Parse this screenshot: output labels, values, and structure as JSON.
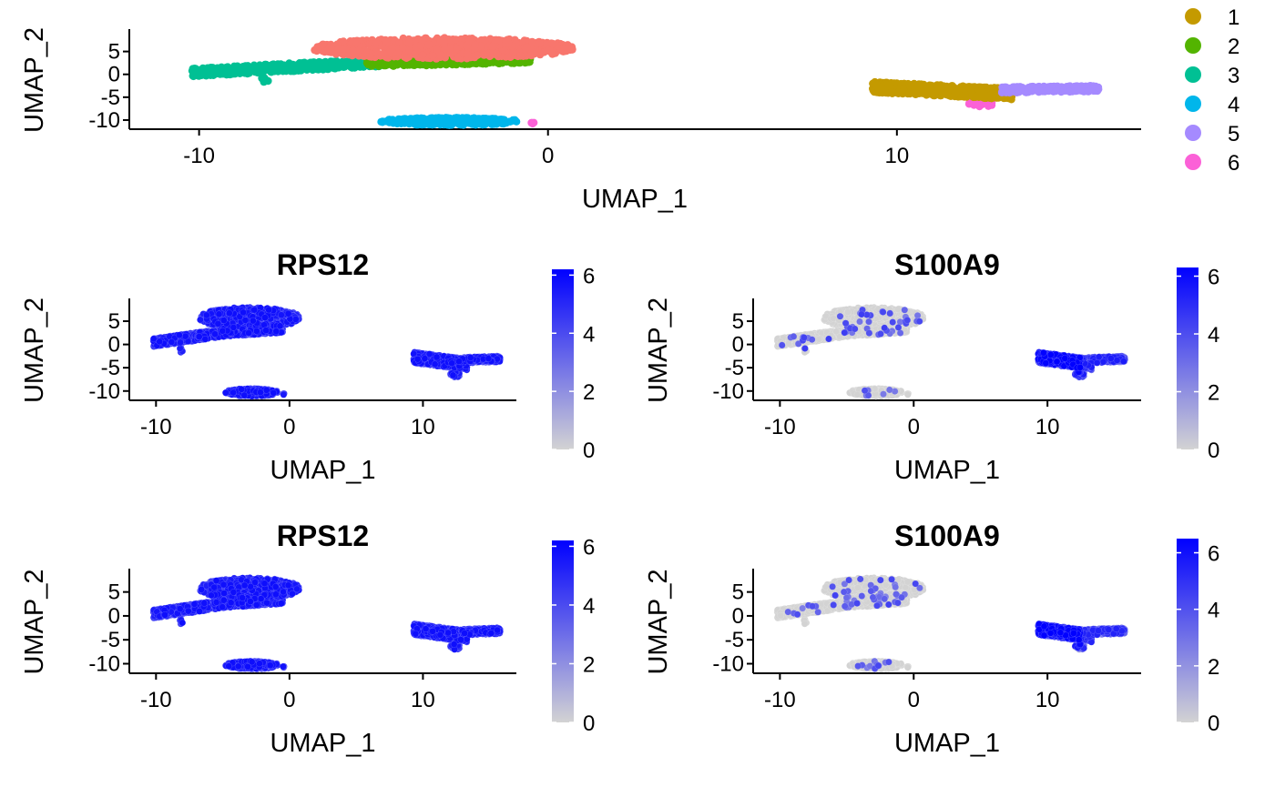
{
  "chart_data": [
    {
      "panel": "clusters",
      "type": "scatter",
      "title": "",
      "xlabel": "UMAP_1",
      "ylabel": "UMAP_2",
      "xlim": [
        -12,
        17
      ],
      "ylim": [
        -12,
        9.5
      ],
      "xticks": [
        -10,
        0,
        10
      ],
      "yticks": [
        5,
        0,
        -5,
        -10
      ],
      "grid": false,
      "legend": {
        "position": "right",
        "title": "",
        "entries": [
          "1",
          "2",
          "3",
          "4",
          "5",
          "6"
        ]
      },
      "colors": {
        "1": "#C49A00",
        "2": "#53B400",
        "3": "#00C094",
        "4": "#00B6EB",
        "5": "#A58AFF",
        "6": "#FB61D7",
        "0": "#F8766D"
      },
      "clusters": [
        {
          "id": "0",
          "shape": "ellipse",
          "cx": -3.0,
          "cy": 5.7,
          "rx": 3.8,
          "ry": 2.3,
          "n": 700
        },
        {
          "id": "2",
          "shape": "band",
          "x0": -5.2,
          "x1": -0.5,
          "y0": 2.8,
          "y1": 3.6,
          "h": 2.3,
          "n": 550
        },
        {
          "id": "3",
          "shape": "band",
          "x0": -10.2,
          "x1": -4.8,
          "y0": 0.4,
          "y1": 2.6,
          "h": 1.8,
          "n": 420
        },
        {
          "id": "3b",
          "color_of": "3",
          "shape": "ellipse",
          "cx": -8.1,
          "cy": -1.1,
          "rx": 0.15,
          "ry": 0.6,
          "n": 8
        },
        {
          "id": "4",
          "shape": "ellipse",
          "cx": -2.8,
          "cy": -10.3,
          "rx": 2.0,
          "ry": 0.85,
          "n": 380
        },
        {
          "id": "6",
          "shape": "ellipse",
          "cx": -0.5,
          "cy": -10.6,
          "rx": 0.1,
          "ry": 0.25,
          "n": 4
        },
        {
          "id": "1",
          "shape": "band",
          "x0": 9.3,
          "x1": 13.3,
          "y0": -2.8,
          "y1": -4.3,
          "h": 2.4,
          "n": 650
        },
        {
          "id": "5",
          "shape": "band",
          "x0": 13.0,
          "x1": 15.8,
          "y0": -3.4,
          "y1": -3.1,
          "h": 1.3,
          "n": 280
        },
        {
          "id": "6b",
          "color_of": "6",
          "shape": "ellipse",
          "cx": 12.4,
          "cy": -6.5,
          "rx": 0.35,
          "ry": 0.7,
          "n": 30
        }
      ]
    },
    {
      "panel": "rps12-a",
      "type": "scatter",
      "title": "RPS12",
      "xlabel": "UMAP_1",
      "ylabel": "UMAP_2",
      "xlim": [
        -12,
        17
      ],
      "ylim": [
        -12,
        9.5
      ],
      "xticks": [
        -10,
        0,
        10
      ],
      "yticks": [
        5,
        0,
        -5,
        -10
      ],
      "colorbar": {
        "min": 0,
        "max": 6.2,
        "ticks": [
          0,
          2,
          4,
          6
        ],
        "low": "#D3D3D3",
        "high": "#0000FF"
      },
      "expression": "uniform-high",
      "grid": false
    },
    {
      "panel": "s100a9-a",
      "type": "scatter",
      "title": "S100A9",
      "xlabel": "UMAP_1",
      "ylabel": "UMAP_2",
      "xlim": [
        -12,
        17
      ],
      "ylim": [
        -12,
        9.5
      ],
      "xticks": [
        -10,
        0,
        10
      ],
      "yticks": [
        5,
        0,
        -5,
        -10
      ],
      "colorbar": {
        "min": 0,
        "max": 6.3,
        "ticks": [
          0,
          2,
          4,
          6
        ],
        "low": "#D3D3D3",
        "high": "#0000FF"
      },
      "expression": "high-in-right-cluster",
      "grid": false
    },
    {
      "panel": "rps12-b",
      "type": "scatter",
      "title": "RPS12",
      "xlabel": "UMAP_1",
      "ylabel": "UMAP_2",
      "xlim": [
        -12,
        17
      ],
      "ylim": [
        -12,
        9.5
      ],
      "xticks": [
        -10,
        0,
        10
      ],
      "yticks": [
        5,
        0,
        -5,
        -10
      ],
      "colorbar": {
        "min": 0,
        "max": 6.2,
        "ticks": [
          0,
          2,
          4,
          6
        ],
        "low": "#D3D3D3",
        "high": "#0000FF"
      },
      "expression": "uniform-high",
      "grid": false
    },
    {
      "panel": "s100a9-b",
      "type": "scatter",
      "title": "S100A9",
      "xlabel": "UMAP_1",
      "ylabel": "UMAP_2",
      "xlim": [
        -12,
        17
      ],
      "ylim": [
        -12,
        9.5
      ],
      "xticks": [
        -10,
        0,
        10
      ],
      "yticks": [
        5,
        0,
        -5,
        -10
      ],
      "colorbar": {
        "min": 0,
        "max": 6.5,
        "ticks": [
          0,
          2,
          4,
          6
        ],
        "low": "#D3D3D3",
        "high": "#0000FF"
      },
      "expression": "high-in-right-cluster",
      "grid": false
    }
  ]
}
